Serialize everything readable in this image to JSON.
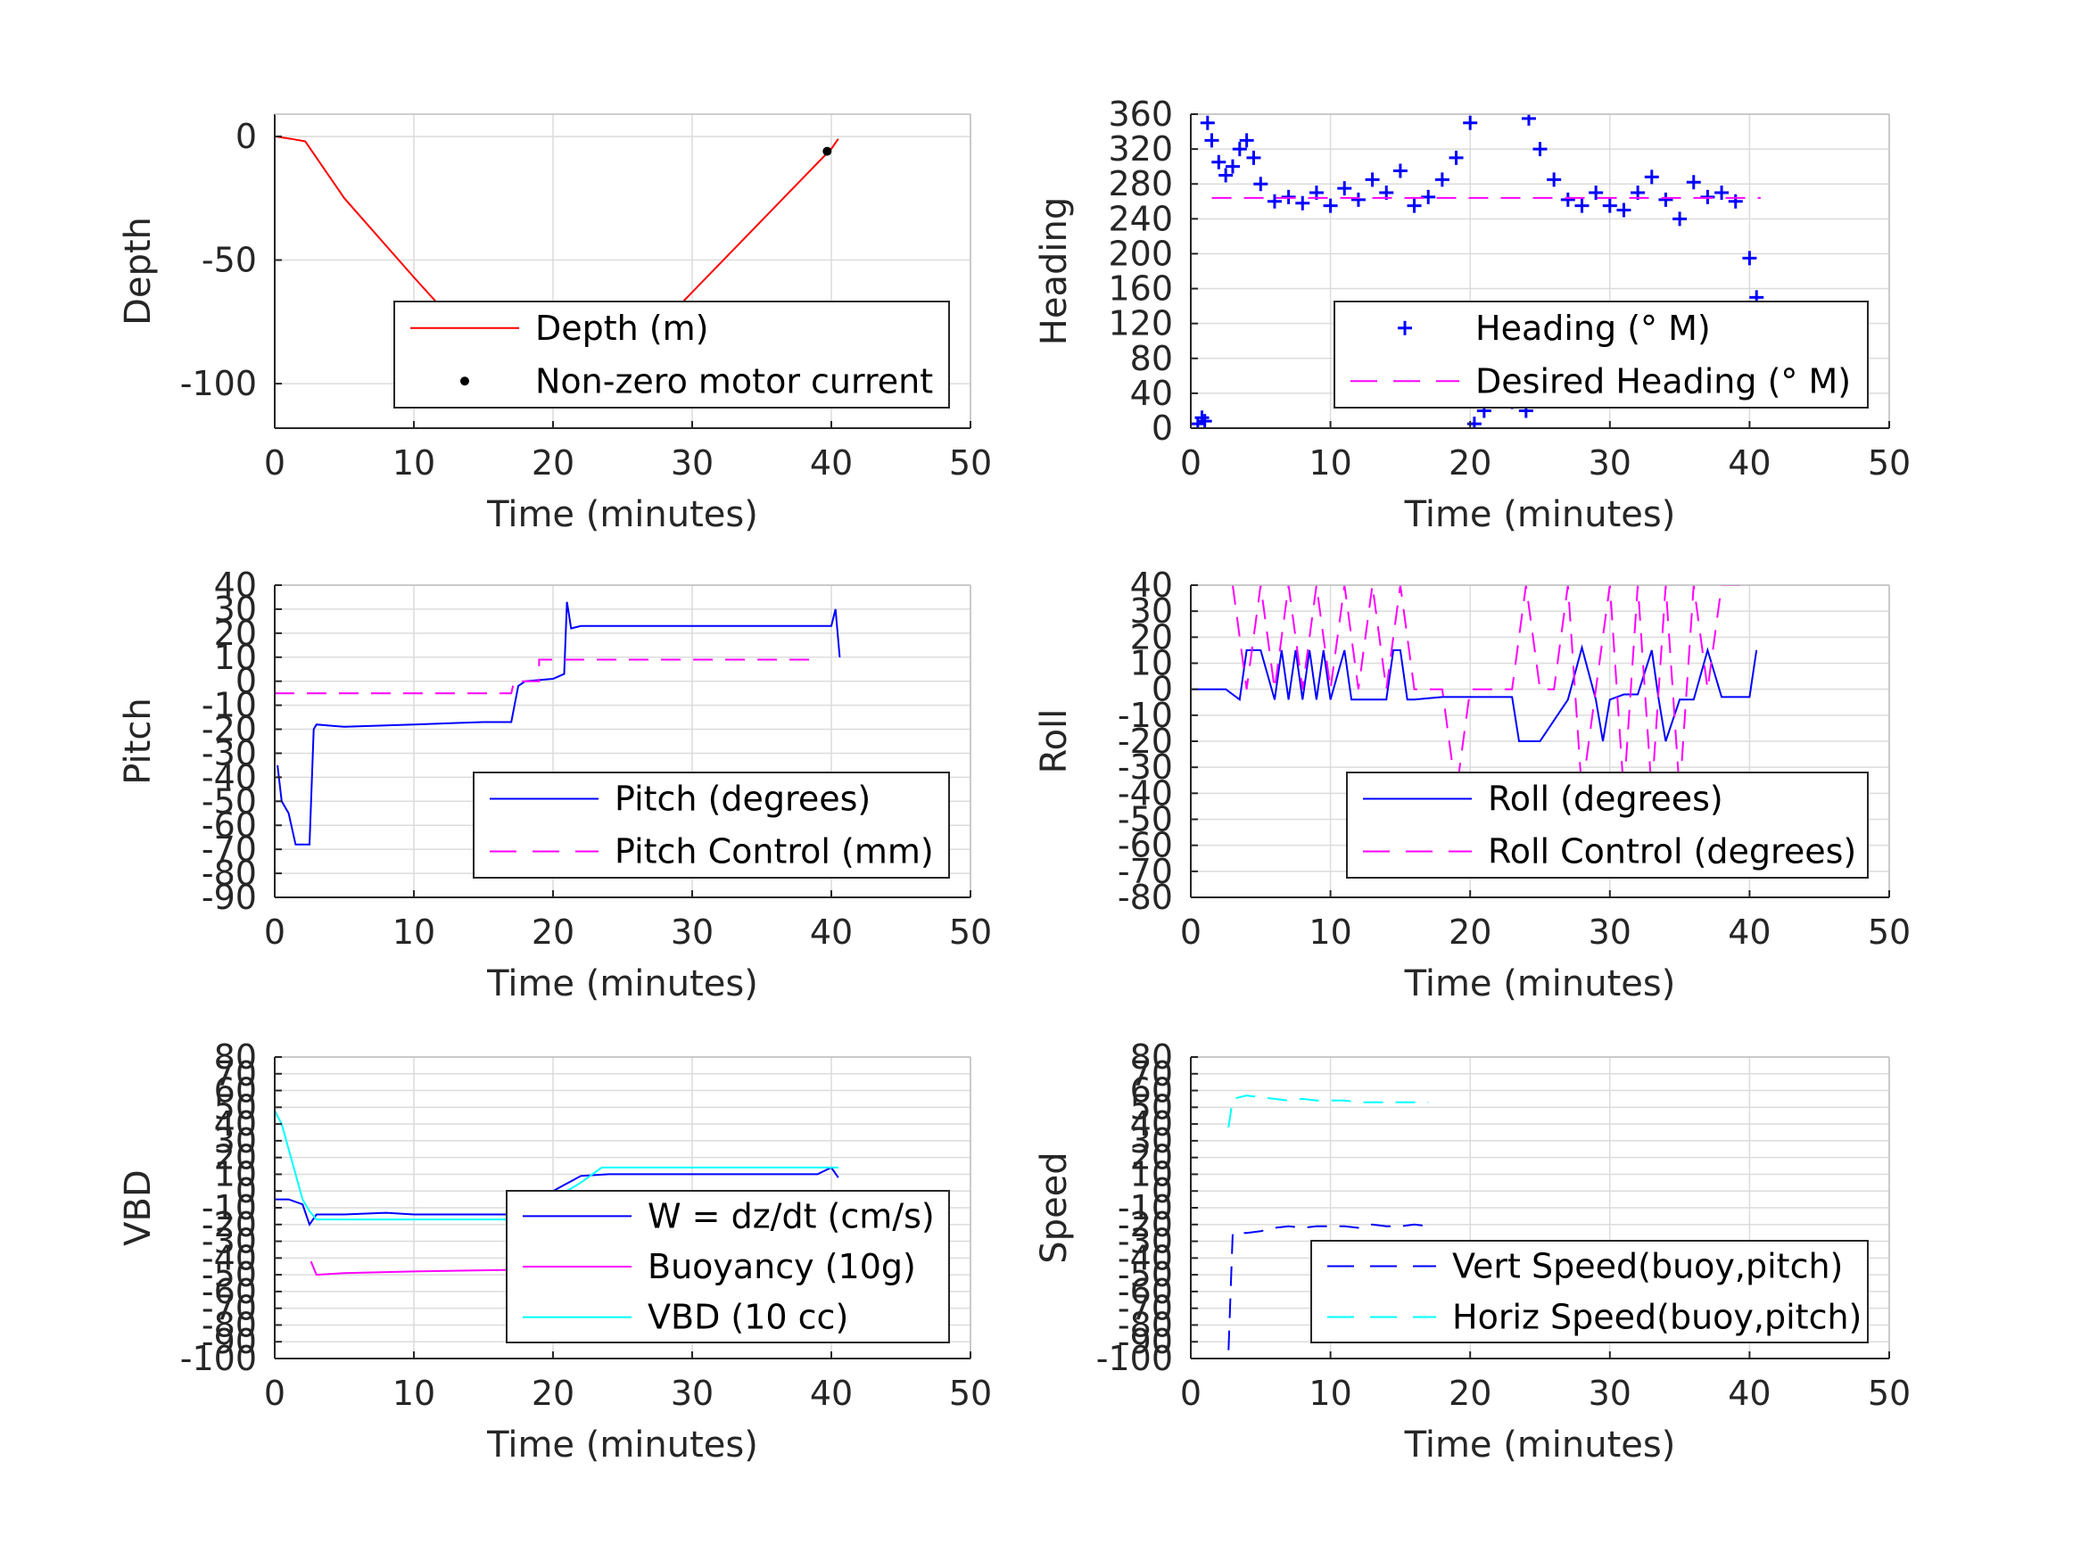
{
  "chart_data": [
    {
      "type": "line",
      "ylabel": "Depth",
      "xlabel": "Time (minutes)",
      "xlim": [
        0,
        50
      ],
      "ylim": [
        -118,
        9
      ],
      "xticks": [
        0,
        10,
        20,
        30,
        40,
        50
      ],
      "yticks": [
        0,
        -50,
        -100
      ],
      "legend_position": "lower-right",
      "series": [
        {
          "name": "Depth (m)",
          "style": "line",
          "color": "#ff0000",
          "x": [
            0,
            1.2,
            2.2,
            2.8,
            5,
            10,
            15,
            17.2,
            19,
            21,
            22,
            23,
            24,
            25,
            30,
            35,
            40,
            40.5
          ],
          "y": [
            0,
            -1,
            -2,
            -7,
            -25,
            -57,
            -88,
            -101,
            -104,
            -107,
            -108,
            -105,
            -99,
            -92,
            -63,
            -34,
            -5,
            -1
          ]
        },
        {
          "name": "Non-zero motor current",
          "style": "markers",
          "color": "#000000",
          "x": [
            17.4,
            18,
            18.6,
            19.2,
            19.8,
            20.4,
            21,
            21.6,
            22.2,
            22.8,
            23.4,
            39.7
          ],
          "y": [
            -101,
            -102,
            -103.5,
            -104.5,
            -105.5,
            -106,
            -106.5,
            -106.5,
            -106,
            -104,
            -100,
            -6
          ]
        }
      ]
    },
    {
      "type": "scatter",
      "ylabel": "Heading",
      "xlabel": "Time (minutes)",
      "xlim": [
        0,
        50
      ],
      "ylim": [
        0,
        360
      ],
      "xticks": [
        0,
        10,
        20,
        30,
        40,
        50
      ],
      "yticks": [
        0,
        40,
        80,
        120,
        160,
        200,
        240,
        280,
        320,
        360
      ],
      "legend_position": "lower-right",
      "series": [
        {
          "name": "Heading (° M)",
          "style": "plus-markers",
          "color": "#0000ff",
          "x": [
            0.5,
            0.8,
            1.0,
            1.2,
            1.5,
            2,
            2.5,
            3,
            3.5,
            4,
            4.5,
            5,
            6,
            7,
            8,
            9,
            10,
            11,
            12,
            13,
            14,
            15,
            16,
            17,
            18,
            19,
            20,
            20.3,
            21,
            22,
            23,
            24,
            24.2,
            25,
            26,
            27,
            28,
            29,
            30,
            31,
            32,
            33,
            34,
            35,
            36,
            37,
            38,
            39,
            40,
            40.5
          ],
          "y": [
            5,
            12,
            8,
            350,
            330,
            305,
            290,
            300,
            320,
            330,
            310,
            280,
            260,
            265,
            258,
            270,
            255,
            275,
            262,
            285,
            270,
            295,
            255,
            265,
            285,
            310,
            350,
            5,
            20,
            38,
            30,
            20,
            355,
            320,
            285,
            262,
            255,
            270,
            255,
            250,
            270,
            288,
            262,
            240,
            282,
            265,
            270,
            260,
            195,
            150
          ]
        },
        {
          "name": "Desired Heading (° M)",
          "style": "dashed",
          "color": "#ff00ff",
          "x": [
            1.5,
            40.8
          ],
          "y": [
            264,
            264
          ]
        }
      ]
    },
    {
      "type": "line",
      "ylabel": "Pitch",
      "xlabel": "Time (minutes)",
      "xlim": [
        0,
        50
      ],
      "ylim": [
        -90,
        40
      ],
      "xticks": [
        0,
        10,
        20,
        30,
        40,
        50
      ],
      "yticks": [
        40,
        30,
        20,
        10,
        0,
        -10,
        -20,
        -30,
        -40,
        -50,
        -60,
        -70,
        -80,
        -90
      ],
      "legend_position": "lower-right",
      "series": [
        {
          "name": "Pitch (degrees)",
          "style": "line",
          "color": "#0000ff",
          "x": [
            0.2,
            0.5,
            1,
            1.5,
            2,
            2.5,
            2.8,
            3,
            5,
            10,
            15,
            17,
            17.5,
            18,
            20,
            20.8,
            21,
            21.3,
            22,
            25,
            30,
            35,
            40,
            40.3,
            40.6
          ],
          "y": [
            -35,
            -50,
            -55,
            -68,
            -68,
            -68,
            -20,
            -18,
            -19,
            -18,
            -17,
            -17,
            -2,
            0,
            1,
            3,
            33,
            22,
            23,
            23,
            23,
            23,
            23,
            30,
            10
          ]
        },
        {
          "name": "Pitch Control (mm)",
          "style": "dashed",
          "color": "#ff00ff",
          "x": [
            0,
            17,
            17.2,
            19,
            19,
            39
          ],
          "y": [
            -5,
            -5,
            0,
            0,
            9,
            9
          ]
        }
      ]
    },
    {
      "type": "line",
      "ylabel": "Roll",
      "xlabel": "Time (minutes)",
      "xlim": [
        0,
        50
      ],
      "ylim": [
        -80,
        40
      ],
      "xticks": [
        0,
        10,
        20,
        30,
        40,
        50
      ],
      "yticks": [
        40,
        30,
        20,
        10,
        0,
        -10,
        -20,
        -30,
        -40,
        -50,
        -60,
        -70,
        -80
      ],
      "legend_position": "lower-right",
      "series": [
        {
          "name": "Roll (degrees)",
          "style": "line",
          "color": "#0000ff",
          "x": [
            0,
            2.5,
            3.5,
            4,
            5,
            6,
            6.5,
            7,
            7.5,
            8,
            8.5,
            9,
            9.5,
            10,
            11,
            11.5,
            12,
            13,
            14,
            14.5,
            15,
            15.5,
            16,
            18,
            23,
            23.5,
            24,
            25,
            27,
            28,
            29,
            29.5,
            30,
            31,
            32,
            33,
            33.5,
            34,
            35,
            36,
            37,
            38,
            39,
            40,
            40.5
          ],
          "y": [
            0,
            0,
            -4,
            15,
            15,
            -4,
            15,
            -4,
            15,
            -4,
            15,
            -4,
            15,
            -4,
            15,
            -4,
            -4,
            -4,
            -4,
            15,
            15,
            -4,
            -4,
            -3,
            -3,
            -20,
            -20,
            -20,
            -4,
            16,
            -4,
            -20,
            -4,
            -2,
            -2,
            15,
            -4,
            -20,
            -4,
            -4,
            15,
            -3,
            -3,
            -3,
            15
          ]
        },
        {
          "name": "Roll Control (degrees)",
          "style": "dashed",
          "color": "#ff00ff",
          "x": [
            3,
            4,
            5,
            6,
            7,
            8,
            9,
            10,
            11,
            12,
            13,
            14,
            15,
            16,
            17,
            18,
            19,
            20,
            21,
            22,
            23,
            24,
            25,
            26,
            27,
            28,
            29,
            30,
            31,
            32,
            33,
            34,
            35,
            36,
            37,
            38,
            39,
            40
          ],
          "y": [
            40,
            0,
            40,
            0,
            40,
            0,
            40,
            0,
            40,
            0,
            40,
            0,
            40,
            0,
            0,
            0,
            -40,
            0,
            0,
            0,
            0,
            40,
            0,
            0,
            40,
            -40,
            0,
            40,
            -40,
            40,
            -40,
            40,
            -40,
            40,
            0,
            40,
            40,
            40
          ]
        }
      ]
    },
    {
      "type": "line",
      "ylabel": "VBD",
      "xlabel": "Time (minutes)",
      "xlim": [
        0,
        50
      ],
      "ylim": [
        -100,
        80
      ],
      "xticks": [
        0,
        10,
        20,
        30,
        40,
        50
      ],
      "yticks": [
        80,
        70,
        60,
        50,
        40,
        30,
        20,
        10,
        0,
        -10,
        -20,
        -30,
        -40,
        -50,
        -60,
        -70,
        -80,
        -90,
        -100
      ],
      "legend_position": "lower-right",
      "series": [
        {
          "name": "W = dz/dt (cm/s)",
          "style": "line",
          "color": "#0000ff",
          "x": [
            0,
            1,
            2,
            2.5,
            3,
            5,
            8,
            10,
            15,
            17,
            18,
            20,
            22,
            24,
            27,
            30,
            33,
            36,
            39,
            40,
            40.5
          ],
          "y": [
            -5,
            -5,
            -8,
            -20,
            -14,
            -14,
            -13,
            -14,
            -14,
            -14,
            -10,
            0,
            9,
            10,
            10,
            10,
            10,
            10,
            10,
            14,
            8
          ]
        },
        {
          "name": "Buoyancy (10g)",
          "style": "line",
          "color": "#ff00ff",
          "x": [
            2.6,
            3,
            5,
            10,
            17.5
          ],
          "y": [
            -42,
            -50,
            -49,
            -48,
            -47
          ]
        },
        {
          "name": "VBD (10 cc)",
          "style": "line",
          "color": "#00ffff",
          "x": [
            0,
            0.5,
            1,
            1.5,
            2,
            2.5,
            3,
            5,
            10,
            15,
            17.3,
            17.5,
            18,
            20,
            22,
            23.5,
            25,
            30,
            35,
            40,
            40.5
          ],
          "y": [
            48,
            40,
            25,
            10,
            -5,
            -12,
            -17,
            -17,
            -17,
            -17,
            -17,
            -17,
            -16,
            -5,
            5,
            14,
            14,
            14,
            14,
            14,
            14
          ]
        }
      ]
    },
    {
      "type": "line",
      "ylabel": "Speed",
      "xlabel": "Time (minutes)",
      "xlim": [
        0,
        50
      ],
      "ylim": [
        -100,
        80
      ],
      "xticks": [
        0,
        10,
        20,
        30,
        40,
        50
      ],
      "yticks": [
        80,
        70,
        60,
        50,
        40,
        30,
        20,
        10,
        0,
        -10,
        -20,
        -30,
        -40,
        -50,
        -60,
        -70,
        -80,
        -90,
        -100
      ],
      "legend_position": "lower-right",
      "series": [
        {
          "name": "Vert Speed(buoy,pitch)",
          "style": "dashed",
          "color": "#0000ff",
          "x": [
            2.7,
            3,
            4,
            5,
            6,
            7,
            8,
            9,
            10,
            11,
            12,
            13,
            14,
            15,
            16,
            17
          ],
          "y": [
            -95,
            -25,
            -25,
            -24,
            -22,
            -21,
            -22,
            -21,
            -21,
            -21,
            -22,
            -20,
            -21,
            -21,
            -20,
            -21
          ]
        },
        {
          "name": "Horiz Speed(buoy,pitch)",
          "style": "dashed",
          "color": "#00ffff",
          "x": [
            2.7,
            3,
            4,
            5,
            6,
            7,
            8,
            9,
            10,
            11,
            12,
            13,
            14,
            15,
            16,
            17
          ],
          "y": [
            38,
            55,
            57,
            56,
            55,
            54,
            55,
            54,
            54,
            54,
            53,
            53,
            53,
            53,
            53,
            53
          ]
        }
      ]
    }
  ]
}
